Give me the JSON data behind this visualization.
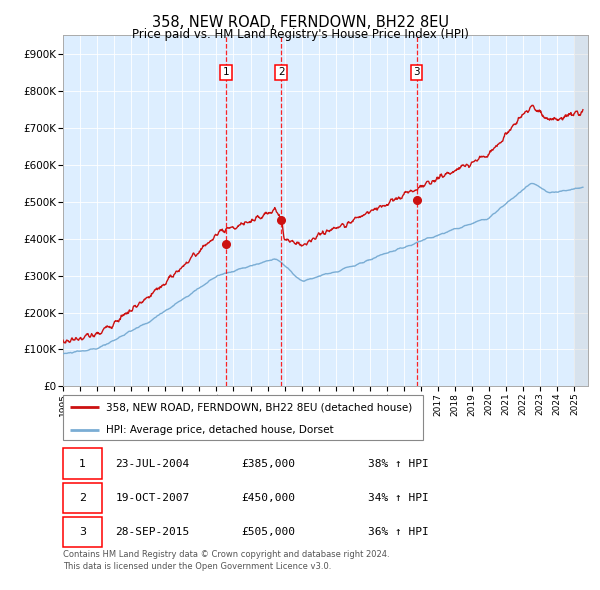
{
  "title": "358, NEW ROAD, FERNDOWN, BH22 8EU",
  "subtitle": "Price paid vs. HM Land Registry's House Price Index (HPI)",
  "legend_line1": "358, NEW ROAD, FERNDOWN, BH22 8EU (detached house)",
  "legend_line2": "HPI: Average price, detached house, Dorset",
  "footer_line1": "Contains HM Land Registry data © Crown copyright and database right 2024.",
  "footer_line2": "This data is licensed under the Open Government Licence v3.0.",
  "hpi_color": "#7aadd4",
  "price_color": "#cc1111",
  "background_color": "#ddeeff",
  "grid_color": "#ffffff",
  "sale_points": [
    {
      "label": "1",
      "date": "23-JUL-2004",
      "price": 385000,
      "pct": "38% ↑ HPI",
      "x_year": 2004.55
    },
    {
      "label": "2",
      "date": "19-OCT-2007",
      "price": 450000,
      "pct": "34% ↑ HPI",
      "x_year": 2007.8
    },
    {
      "label": "3",
      "date": "28-SEP-2015",
      "price": 505000,
      "pct": "36% ↑ HPI",
      "x_year": 2015.74
    }
  ],
  "ylim": [
    0,
    950000
  ],
  "xlim_start": 1995.0,
  "xlim_end": 2025.8,
  "yticks": [
    0,
    100000,
    200000,
    300000,
    400000,
    500000,
    600000,
    700000,
    800000,
    900000
  ],
  "ytick_labels": [
    "£0",
    "£100K",
    "£200K",
    "£300K",
    "£400K",
    "£500K",
    "£600K",
    "£700K",
    "£800K",
    "£900K"
  ],
  "xtick_years": [
    1995,
    1996,
    1997,
    1998,
    1999,
    2000,
    2001,
    2002,
    2003,
    2004,
    2005,
    2006,
    2007,
    2008,
    2009,
    2010,
    2011,
    2012,
    2013,
    2014,
    2015,
    2016,
    2017,
    2018,
    2019,
    2020,
    2021,
    2022,
    2023,
    2024,
    2025
  ],
  "table_rows": [
    [
      "1",
      "23-JUL-2004",
      "£385,000",
      "38% ↑ HPI"
    ],
    [
      "2",
      "19-OCT-2007",
      "£450,000",
      "34% ↑ HPI"
    ],
    [
      "3",
      "28-SEP-2015",
      "£505,000",
      "36% ↑ HPI"
    ]
  ]
}
